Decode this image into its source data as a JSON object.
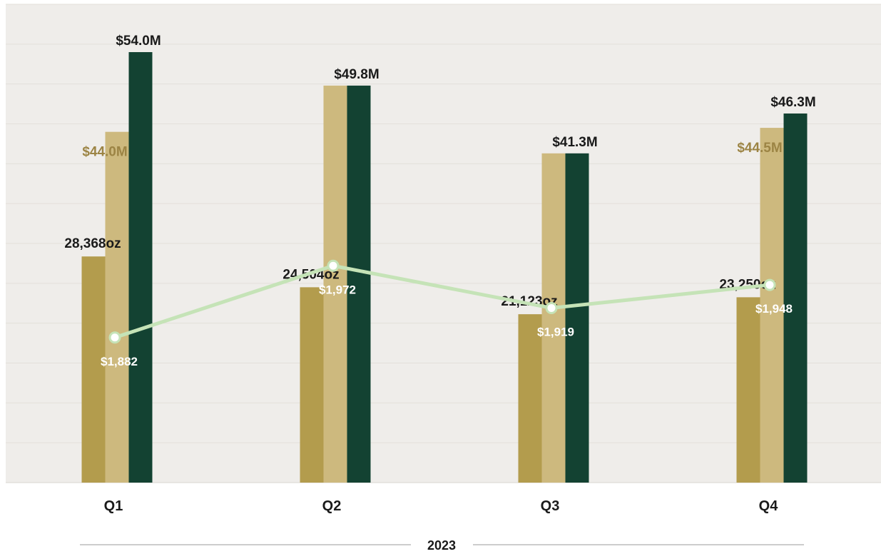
{
  "chart_data": {
    "type": "bar",
    "categories": [
      "Q1",
      "Q2",
      "Q3",
      "Q4"
    ],
    "group_label": "2023",
    "bar_series": [
      {
        "values": [
          28368,
          24504,
          21123,
          23250
        ],
        "labels": [
          "28,368oz",
          "24,504oz",
          "21,123oz",
          "23,250oz"
        ],
        "color": "#b39c4d",
        "unit": "oz"
      },
      {
        "values": [
          44.0,
          49.8,
          41.3,
          44.5
        ],
        "labels": [
          "$44.0M",
          "",
          "",
          "$44.5M"
        ],
        "color": "#cdb97e",
        "label_color": "#9c8444",
        "unit": "$M"
      },
      {
        "values": [
          54.0,
          49.8,
          41.3,
          46.3
        ],
        "labels": [
          "$54.0M",
          "$49.8M",
          "$41.3M",
          "$46.3M"
        ],
        "color": "#134232",
        "unit": "$M"
      }
    ],
    "line_series": {
      "values": [
        1882,
        1972,
        1919,
        1948
      ],
      "labels": [
        "$1,882",
        "$1,972",
        "$1,919",
        "$1,948"
      ],
      "color": "#c5e3b7",
      "unit": "$/oz"
    },
    "axis_ranges": {
      "money_millions": [
        0,
        60
      ],
      "ounces": [
        0,
        60000
      ],
      "line_dollars": [
        1700,
        2300
      ]
    },
    "grid": true,
    "legend": "none",
    "plot_background": "#efedea",
    "label_color": "#1a1a1a"
  }
}
